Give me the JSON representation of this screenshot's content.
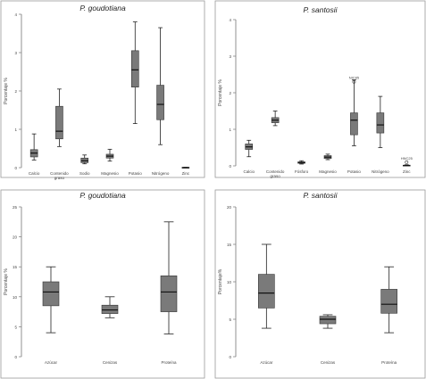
{
  "chart_data": [
    {
      "type": "boxplot",
      "title": "P. goudotiana",
      "ylabel": "Porcentaje %",
      "ylim": [
        0,
        4
      ],
      "yticks": [
        0,
        1,
        2,
        3,
        4
      ],
      "ytick_labels": [
        "0",
        "1",
        "2",
        "3",
        "4"
      ],
      "categories": [
        "Calcio",
        "Contenido graso",
        "Sodio",
        "Magnesio",
        "Potasio",
        "Nitrógeno",
        "Zinc"
      ],
      "category_labels": [
        [
          "Calcio"
        ],
        [
          "Contenido",
          "graso"
        ],
        [
          "Sodio"
        ],
        [
          "Magnesio"
        ],
        [
          "Potasio"
        ],
        [
          "Nitrógeno"
        ],
        [
          "Zinc"
        ]
      ],
      "boxes": [
        {
          "min": 0.2,
          "q1": 0.28,
          "median": 0.38,
          "q3": 0.47,
          "max": 0.88
        },
        {
          "min": 0.55,
          "q1": 0.75,
          "median": 0.95,
          "q3": 1.6,
          "max": 2.05
        },
        {
          "min": 0.1,
          "q1": 0.13,
          "median": 0.18,
          "q3": 0.25,
          "max": 0.33
        },
        {
          "min": 0.17,
          "q1": 0.25,
          "median": 0.3,
          "q3": 0.35,
          "max": 0.48
        },
        {
          "min": 1.15,
          "q1": 2.1,
          "median": 2.55,
          "q3": 3.05,
          "max": 3.8
        },
        {
          "min": 0.6,
          "q1": 1.25,
          "median": 1.65,
          "q3": 2.15,
          "max": 3.65
        },
        {
          "min": 0.0,
          "q1": 0.0,
          "median": 0.0,
          "q3": 0.01,
          "max": 0.01
        }
      ],
      "outliers": []
    },
    {
      "type": "boxplot",
      "title": "P. santosii",
      "ylabel": "Porcentaje %",
      "ylim": [
        0,
        4
      ],
      "yticks": [
        0,
        1,
        2,
        3,
        4
      ],
      "ytick_labels": [
        "0",
        "1",
        "2",
        "3",
        "4"
      ],
      "categories": [
        "Calcio",
        "Contenido graso",
        "Fósforo",
        "Magnesio",
        "Potasio",
        "Nitrógeno",
        "Zinc"
      ],
      "category_labels": [
        [
          "Calcio"
        ],
        [
          "Contenido",
          "graso"
        ],
        [
          "Fósforo"
        ],
        [
          "Magnesio"
        ],
        [
          "Potasio"
        ],
        [
          "Nitrógeno"
        ],
        [
          "Zinc"
        ]
      ],
      "boxes": [
        {
          "min": 0.25,
          "q1": 0.45,
          "median": 0.52,
          "q3": 0.6,
          "max": 0.7
        },
        {
          "min": 1.1,
          "q1": 1.18,
          "median": 1.25,
          "q3": 1.32,
          "max": 1.5
        },
        {
          "min": 0.05,
          "q1": 0.07,
          "median": 0.09,
          "q3": 0.11,
          "max": 0.14
        },
        {
          "min": 0.17,
          "q1": 0.2,
          "median": 0.24,
          "q3": 0.28,
          "max": 0.32
        },
        {
          "min": 0.55,
          "q1": 0.85,
          "median": 1.25,
          "q3": 1.45,
          "max": 2.35
        },
        {
          "min": 0.5,
          "q1": 0.9,
          "median": 1.12,
          "q3": 1.45,
          "max": 1.9
        },
        {
          "min": 0.0,
          "q1": 0.0,
          "median": 0.01,
          "q3": 0.02,
          "max": 0.03
        }
      ],
      "outliers": [
        {
          "category": "Potasio",
          "value": 2.3,
          "label": "NIC85"
        },
        {
          "category": "Zinc",
          "value": 0.1,
          "label": "HNC25"
        }
      ]
    },
    {
      "type": "boxplot",
      "title": "P. goudotiana",
      "ylabel": "Porcentaje %",
      "ylim": [
        0,
        25
      ],
      "yticks": [
        0,
        5,
        10,
        15,
        20,
        25
      ],
      "ytick_labels": [
        "0",
        "5",
        "10",
        "15",
        "20",
        "25"
      ],
      "categories": [
        "Azúcar",
        "Cenizas",
        "Proteína"
      ],
      "category_labels": [
        [
          "Azúcar"
        ],
        [
          "Cenizas"
        ],
        [
          "Proteína"
        ]
      ],
      "boxes": [
        {
          "min": 4,
          "q1": 8.5,
          "median": 10.8,
          "q3": 12.5,
          "max": 15
        },
        {
          "min": 6.5,
          "q1": 7.2,
          "median": 7.8,
          "q3": 8.6,
          "max": 10
        },
        {
          "min": 3.8,
          "q1": 7.5,
          "median": 10.8,
          "q3": 13.5,
          "max": 22.5
        }
      ],
      "outliers": []
    },
    {
      "type": "boxplot",
      "title": "P. santosii",
      "ylabel": "Porcentaje%",
      "ylim": [
        0,
        20
      ],
      "yticks": [
        0,
        5,
        10,
        15,
        20
      ],
      "ytick_labels": [
        "0",
        "5",
        "10",
        "15",
        "20"
      ],
      "categories": [
        "Azúcar",
        "Cenizas",
        "Proteína"
      ],
      "category_labels": [
        [
          "Azúcar"
        ],
        [
          "Cenizas"
        ],
        [
          "Proteína"
        ]
      ],
      "boxes": [
        {
          "min": 3.8,
          "q1": 6.5,
          "median": 8.5,
          "q3": 11,
          "max": 15
        },
        {
          "min": 3.8,
          "q1": 4.4,
          "median": 5,
          "q3": 5.4,
          "max": 5.6
        },
        {
          "min": 3.2,
          "q1": 5.8,
          "median": 7,
          "q3": 9,
          "max": 12
        }
      ],
      "outliers": []
    }
  ]
}
